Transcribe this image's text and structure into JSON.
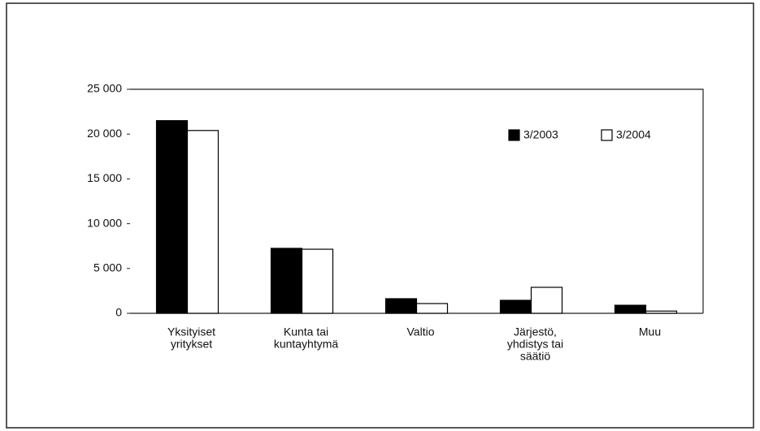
{
  "chart_data": {
    "type": "bar",
    "categories": [
      [
        "Yksityiset",
        "yritykset"
      ],
      [
        "Kunta tai",
        "kuntayhtymä"
      ],
      [
        "Valtio"
      ],
      [
        "Järjestö,",
        "yhdistys tai",
        "säätiö"
      ],
      [
        "Muu"
      ]
    ],
    "series": [
      {
        "name": "3/2003",
        "color": "#000000",
        "values": [
          21500,
          7250,
          1630,
          1450,
          900
        ]
      },
      {
        "name": "3/2004",
        "color": "#ffffff",
        "values": [
          20400,
          7150,
          1090,
          2900,
          250
        ]
      }
    ],
    "ylim": [
      0,
      25000
    ],
    "yticks": [
      0,
      {
        "value": 5000,
        "label": "5 000"
      },
      {
        "value": 10000,
        "label": "10 000"
      },
      {
        "value": 15000,
        "label": "15 000"
      },
      {
        "value": 20000,
        "label": "20 000"
      },
      {
        "value": 25000,
        "label": "25 000"
      }
    ],
    "legend": "top-right"
  }
}
